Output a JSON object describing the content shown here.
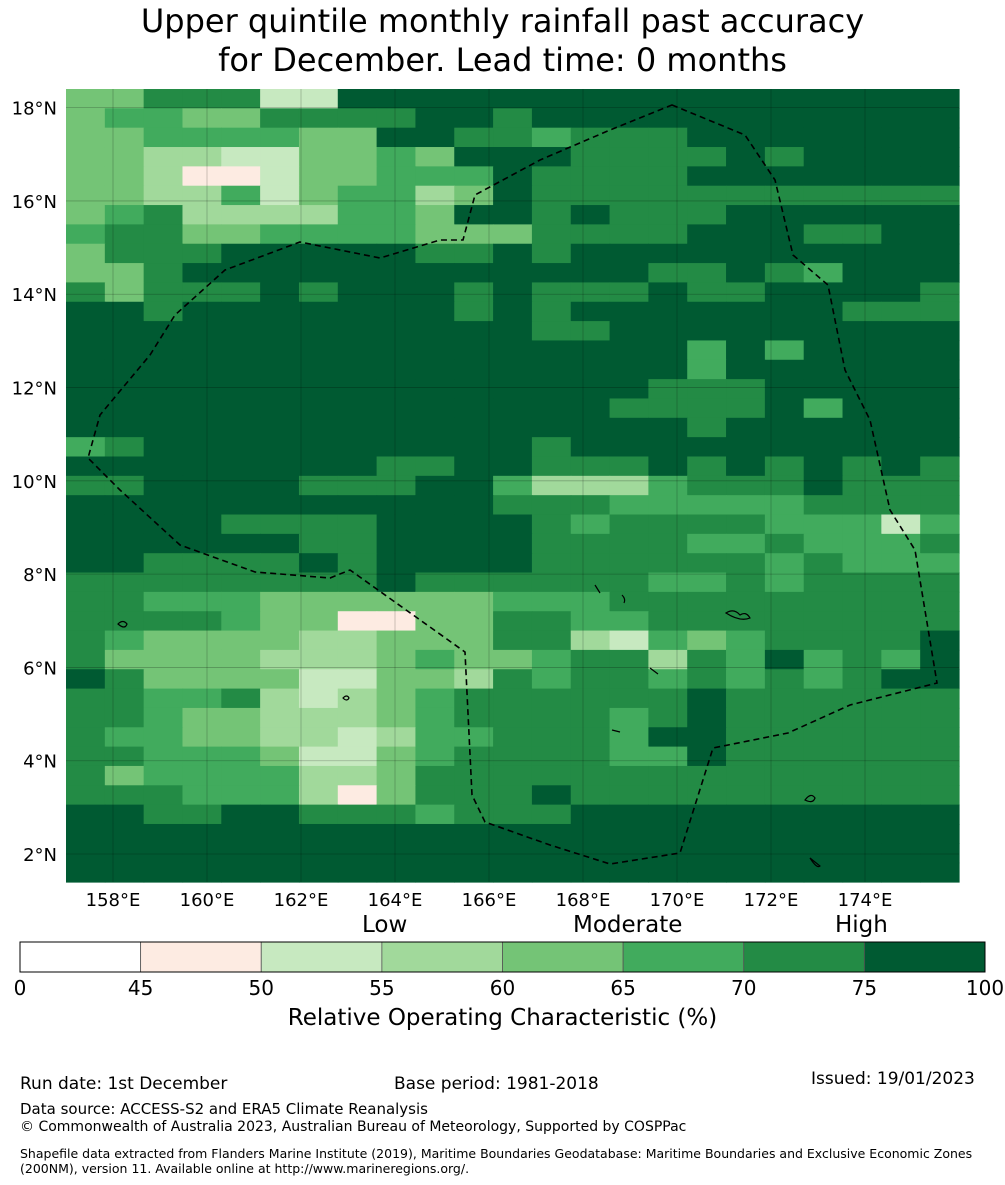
{
  "title": {
    "line1": "Upper quintile monthly rainfall past accuracy",
    "line2": "for December. Lead time: 0 months"
  },
  "map": {
    "lon_range": [
      157.0,
      176.0
    ],
    "lat_range": [
      1.4,
      18.4
    ],
    "lon_ticks": [
      "158°E",
      "160°E",
      "162°E",
      "164°E",
      "166°E",
      "168°E",
      "170°E",
      "172°E",
      "174°E"
    ],
    "lat_ticks": [
      "2°N",
      "4°N",
      "6°N",
      "8°N",
      "10°N",
      "12°N",
      "14°N",
      "16°N",
      "18°N"
    ],
    "gridlines": true,
    "eez_boundary_description_hidden": ""
  },
  "legend": {
    "categories": [
      "Low",
      "Moderate",
      "High"
    ],
    "bins": [
      {
        "from": 0,
        "to": 45,
        "color": "#ffffff"
      },
      {
        "from": 45,
        "to": 50,
        "color": "#fdebe2"
      },
      {
        "from": 50,
        "to": 55,
        "color": "#c7e9c0"
      },
      {
        "from": 55,
        "to": 60,
        "color": "#a1d99b"
      },
      {
        "from": 60,
        "to": 65,
        "color": "#74c476"
      },
      {
        "from": 65,
        "to": 70,
        "color": "#41ab5d"
      },
      {
        "from": 70,
        "to": 75,
        "color": "#238b45"
      },
      {
        "from": 75,
        "to": 100,
        "color": "#005a32"
      }
    ],
    "tick_labels": [
      "0",
      "45",
      "50",
      "55",
      "60",
      "65",
      "70",
      "75",
      "100"
    ],
    "title": "Relative Operating Characteristic (%)"
  },
  "footer": {
    "run_date": "Run date: 1st December",
    "base_period": "Base period: 1981-2018",
    "issued": "Issued: 19/01/2023",
    "data_source": "Data source: ACCESS-S2 and ERA5 Climate Reanalysis",
    "copyright": "© Commonwealth of Australia 2023, Australian Bureau of Meteorology, Supported by COSPPac",
    "shapefile": "Shapefile data extracted from Flanders Marine Institute (2019), Maritime Boundaries Geodatabase: Maritime Boundaries and Exclusive Economic Zones (200NM), version 11. Available online at http://www.marineregions.org/."
  },
  "grid_values": [
    "44666227777777777777777",
    "45544666677677777777777",
    "44555544776656667777777",
    "44332244547776666767777",
    "44311244555766667777777",
    "44335245534766666666666",
    "45633335547767666777777",
    "56644555544466667776677",
    "46667777766767777777777",
    "44677777777777766765777",
    "64666767776766676677776",
    "77677777776767777777666",
    "77777777777766777777777",
    "77777777777777775757777",
    "77777777777777775777777",
    "77777777777777766677777",
    "77777777777777666675777",
    "77777777777777776777777",
    "56777777777767777777777",
    "77777777667766676767676",
    "66777766677533356667666",
    "77777777777666555556666",
    "77776666777765666655525",
    "77777766777766665565556",
    "77666676777766666656555",
    "66666666766666655656666",
    "66555444444555666666666",
    "66665441144665566666666",
    "65444433444663254566667",
    "64444333454456636575657",
    "76444422443656656565677",
    "66556323456666667666666",
    "66544333456666567666666",
    "65544332355666577666666",
    "66555422456666557666666",
    "64555533466666666666666",
    "66655531466676666666666",
    "77667766656667777777777",
    "77777777777777777777777",
    "77777777777777777777777",
    "77777777777777777777777"
  ]
}
